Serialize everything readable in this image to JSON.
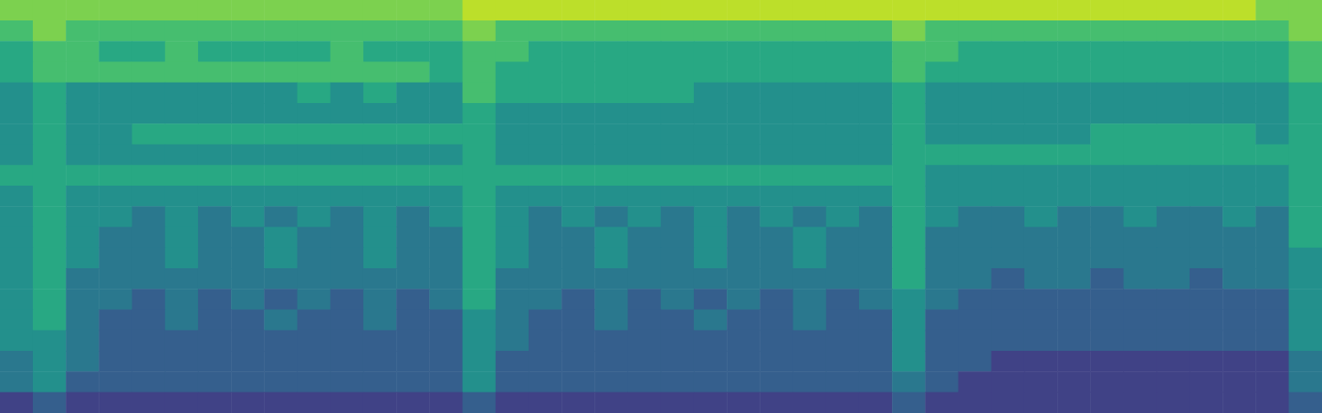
{
  "chart_data": {
    "type": "heatmap",
    "tick_labels": false,
    "color_range": [
      0,
      10
    ],
    "cells": [
      [
        8,
        8,
        8,
        8,
        8,
        8,
        8,
        8,
        8,
        8,
        8,
        8,
        8,
        8,
        9,
        9,
        9,
        9,
        9,
        9,
        9,
        9,
        9,
        9,
        9,
        9,
        9,
        9,
        9,
        9,
        9,
        9,
        9,
        9,
        9,
        9,
        9,
        9,
        8,
        8
      ],
      [
        7,
        8,
        7,
        7,
        7,
        7,
        7,
        7,
        7,
        7,
        7,
        7,
        7,
        7,
        8,
        7,
        7,
        7,
        7,
        7,
        7,
        7,
        7,
        7,
        7,
        7,
        7,
        8,
        7,
        7,
        7,
        7,
        7,
        7,
        7,
        7,
        7,
        7,
        7,
        8
      ],
      [
        6,
        7,
        7,
        6,
        6,
        7,
        6,
        6,
        6,
        6,
        7,
        6,
        6,
        6,
        7,
        7,
        6,
        6,
        6,
        6,
        6,
        6,
        6,
        6,
        6,
        6,
        6,
        7,
        7,
        6,
        6,
        6,
        6,
        6,
        6,
        6,
        6,
        6,
        6,
        7
      ],
      [
        6,
        7,
        7,
        7,
        7,
        7,
        7,
        7,
        7,
        7,
        7,
        7,
        7,
        6,
        7,
        6,
        6,
        6,
        6,
        6,
        6,
        6,
        6,
        6,
        6,
        6,
        6,
        7,
        6,
        6,
        6,
        6,
        6,
        6,
        6,
        6,
        6,
        6,
        6,
        7
      ],
      [
        5,
        6,
        5,
        5,
        5,
        5,
        5,
        5,
        5,
        6,
        5,
        6,
        5,
        5,
        7,
        6,
        6,
        6,
        6,
        6,
        6,
        5,
        5,
        5,
        5,
        5,
        5,
        6,
        5,
        5,
        5,
        5,
        5,
        5,
        5,
        5,
        5,
        5,
        5,
        6
      ],
      [
        5,
        6,
        5,
        5,
        5,
        5,
        5,
        5,
        5,
        5,
        5,
        5,
        5,
        5,
        6,
        5,
        5,
        5,
        5,
        5,
        5,
        5,
        5,
        5,
        5,
        5,
        5,
        6,
        5,
        5,
        5,
        5,
        5,
        5,
        5,
        5,
        5,
        5,
        5,
        6
      ],
      [
        5,
        6,
        5,
        5,
        6,
        6,
        6,
        6,
        6,
        6,
        6,
        6,
        6,
        6,
        6,
        5,
        5,
        5,
        5,
        5,
        5,
        5,
        5,
        5,
        5,
        5,
        5,
        6,
        5,
        5,
        5,
        5,
        5,
        6,
        6,
        6,
        6,
        6,
        5,
        6
      ],
      [
        5,
        6,
        5,
        5,
        5,
        5,
        5,
        5,
        5,
        5,
        5,
        5,
        5,
        5,
        6,
        5,
        5,
        5,
        5,
        5,
        5,
        5,
        5,
        5,
        5,
        5,
        5,
        6,
        6,
        6,
        6,
        6,
        6,
        6,
        6,
        6,
        6,
        6,
        6,
        6
      ],
      [
        6,
        6,
        6,
        6,
        6,
        6,
        6,
        6,
        6,
        6,
        6,
        6,
        6,
        6,
        6,
        6,
        6,
        6,
        6,
        6,
        6,
        6,
        6,
        6,
        6,
        6,
        6,
        6,
        5,
        5,
        5,
        5,
        5,
        5,
        5,
        5,
        5,
        5,
        5,
        6
      ],
      [
        5,
        6,
        5,
        5,
        5,
        5,
        5,
        5,
        5,
        5,
        5,
        5,
        5,
        5,
        6,
        5,
        5,
        5,
        5,
        5,
        5,
        5,
        5,
        5,
        5,
        5,
        5,
        6,
        5,
        5,
        5,
        5,
        5,
        5,
        5,
        5,
        5,
        5,
        5,
        6
      ],
      [
        5,
        6,
        5,
        5,
        4,
        5,
        4,
        5,
        4,
        5,
        4,
        5,
        4,
        5,
        6,
        5,
        4,
        5,
        4,
        5,
        4,
        5,
        4,
        5,
        4,
        5,
        4,
        6,
        5,
        4,
        4,
        5,
        4,
        4,
        5,
        4,
        4,
        5,
        4,
        6
      ],
      [
        5,
        6,
        5,
        4,
        4,
        5,
        4,
        4,
        5,
        4,
        4,
        5,
        4,
        4,
        6,
        5,
        4,
        4,
        5,
        4,
        4,
        5,
        4,
        4,
        5,
        4,
        4,
        6,
        4,
        4,
        4,
        4,
        4,
        4,
        4,
        4,
        4,
        4,
        4,
        6
      ],
      [
        5,
        6,
        5,
        4,
        4,
        5,
        4,
        4,
        5,
        4,
        4,
        5,
        4,
        4,
        6,
        5,
        4,
        4,
        5,
        4,
        4,
        5,
        4,
        4,
        5,
        4,
        4,
        6,
        4,
        4,
        4,
        4,
        4,
        4,
        4,
        4,
        4,
        4,
        4,
        5
      ],
      [
        5,
        6,
        4,
        4,
        4,
        4,
        4,
        4,
        4,
        4,
        4,
        4,
        4,
        4,
        6,
        4,
        4,
        4,
        4,
        4,
        4,
        4,
        4,
        4,
        4,
        4,
        4,
        6,
        4,
        4,
        3,
        4,
        4,
        3,
        4,
        4,
        3,
        4,
        4,
        5
      ],
      [
        5,
        6,
        4,
        4,
        3,
        4,
        3,
        4,
        3,
        4,
        3,
        4,
        3,
        4,
        6,
        4,
        4,
        3,
        4,
        3,
        4,
        3,
        4,
        3,
        4,
        3,
        4,
        5,
        4,
        3,
        3,
        3,
        3,
        3,
        3,
        3,
        3,
        3,
        3,
        5
      ],
      [
        5,
        6,
        4,
        3,
        3,
        4,
        3,
        3,
        4,
        3,
        3,
        4,
        3,
        3,
        5,
        4,
        3,
        3,
        4,
        3,
        3,
        4,
        3,
        3,
        4,
        3,
        3,
        5,
        3,
        3,
        3,
        3,
        3,
        3,
        3,
        3,
        3,
        3,
        3,
        5
      ],
      [
        5,
        5,
        4,
        3,
        3,
        3,
        3,
        3,
        3,
        3,
        3,
        3,
        3,
        3,
        5,
        4,
        3,
        3,
        3,
        3,
        3,
        3,
        3,
        3,
        3,
        3,
        3,
        5,
        3,
        3,
        3,
        3,
        3,
        3,
        3,
        3,
        3,
        3,
        3,
        5
      ],
      [
        4,
        5,
        4,
        3,
        3,
        3,
        3,
        3,
        3,
        3,
        3,
        3,
        3,
        3,
        5,
        3,
        3,
        3,
        3,
        3,
        3,
        3,
        3,
        3,
        3,
        3,
        3,
        5,
        3,
        3,
        2,
        2,
        2,
        2,
        2,
        2,
        2,
        2,
        2,
        4
      ],
      [
        4,
        5,
        3,
        3,
        3,
        3,
        3,
        3,
        3,
        3,
        3,
        3,
        3,
        3,
        5,
        3,
        3,
        3,
        3,
        3,
        3,
        3,
        3,
        3,
        3,
        3,
        3,
        4,
        3,
        2,
        2,
        2,
        2,
        2,
        2,
        2,
        2,
        2,
        2,
        4
      ],
      [
        2,
        3,
        2,
        2,
        2,
        2,
        2,
        2,
        2,
        2,
        2,
        2,
        2,
        2,
        3,
        2,
        2,
        2,
        2,
        2,
        2,
        2,
        2,
        2,
        2,
        2,
        2,
        3,
        2,
        2,
        2,
        2,
        2,
        2,
        2,
        2,
        2,
        2,
        2,
        3
      ]
    ]
  }
}
